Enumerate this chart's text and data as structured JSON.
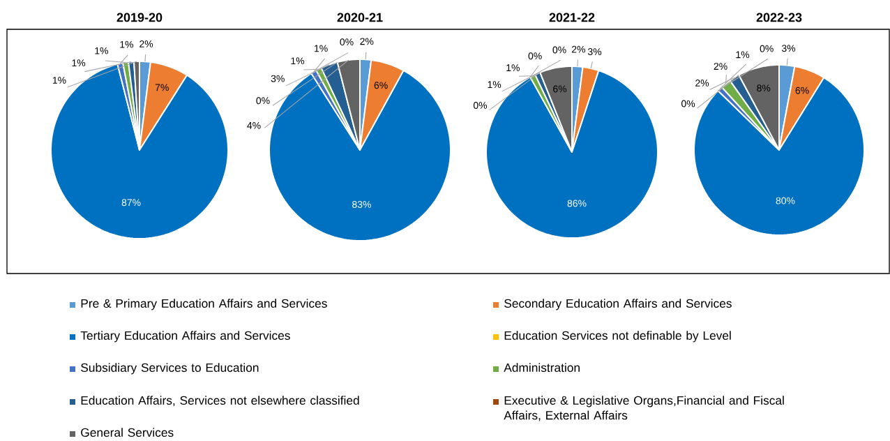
{
  "chart_data": [
    {
      "type": "pie",
      "title": "2019-20",
      "legend": "bottom",
      "categories": [
        "Pre & Primary Education Affairs and Services",
        "Secondary Education Affairs and Services",
        "Tertiary Education Affairs and Services",
        "Education Services not definable by Level",
        "Subsidiary Services to Education",
        "Administration",
        "Education Affairs, Services not elsewhere classified",
        "Executive & Legislative Organs,Financial and Fiscal Affairs, External Affairs",
        "General Services"
      ],
      "values": [
        2,
        7,
        87,
        0,
        1,
        1,
        1,
        0,
        1
      ],
      "value_labels": [
        "2%",
        "7%",
        "87%",
        null,
        "1%",
        "1%",
        "1%",
        null,
        "1%"
      ],
      "colors": [
        "#5b9bd5",
        "#ed7d31",
        "#0070c0",
        "#ffc000",
        "#4472c4",
        "#70ad47",
        "#255e91",
        "#9e480e",
        "#636363"
      ]
    },
    {
      "type": "pie",
      "title": "2020-21",
      "values": [
        2,
        6,
        83,
        0,
        1,
        1,
        3,
        0,
        4
      ],
      "value_labels": [
        "2%",
        "6%",
        "83%",
        "0%",
        "1%",
        "1%",
        "3%",
        "0%",
        "4%"
      ],
      "colors": [
        "#5b9bd5",
        "#ed7d31",
        "#0070c0",
        "#ffc000",
        "#4472c4",
        "#70ad47",
        "#255e91",
        "#9e480e",
        "#636363"
      ]
    },
    {
      "type": "pie",
      "title": "2021-22",
      "values": [
        2,
        3,
        86,
        0,
        0,
        1,
        1,
        0,
        6
      ],
      "value_labels": [
        "2%",
        "3%",
        "86%",
        "0%",
        "0%",
        "1%",
        "1%",
        "0%",
        "6%"
      ],
      "colors": [
        "#5b9bd5",
        "#ed7d31",
        "#0070c0",
        "#ffc000",
        "#4472c4",
        "#70ad47",
        "#255e91",
        "#9e480e",
        "#636363"
      ]
    },
    {
      "type": "pie",
      "title": "2022-23",
      "values": [
        3,
        6,
        80,
        0,
        1,
        2,
        2,
        0,
        8
      ],
      "value_labels": [
        "3%",
        "6%",
        "80%",
        "0%",
        "1%",
        "2%",
        "2%",
        "0%",
        "8%"
      ],
      "colors": [
        "#5b9bd5",
        "#ed7d31",
        "#0070c0",
        "#ffc000",
        "#4472c4",
        "#70ad47",
        "#255e91",
        "#9e480e",
        "#636363"
      ]
    }
  ]
}
